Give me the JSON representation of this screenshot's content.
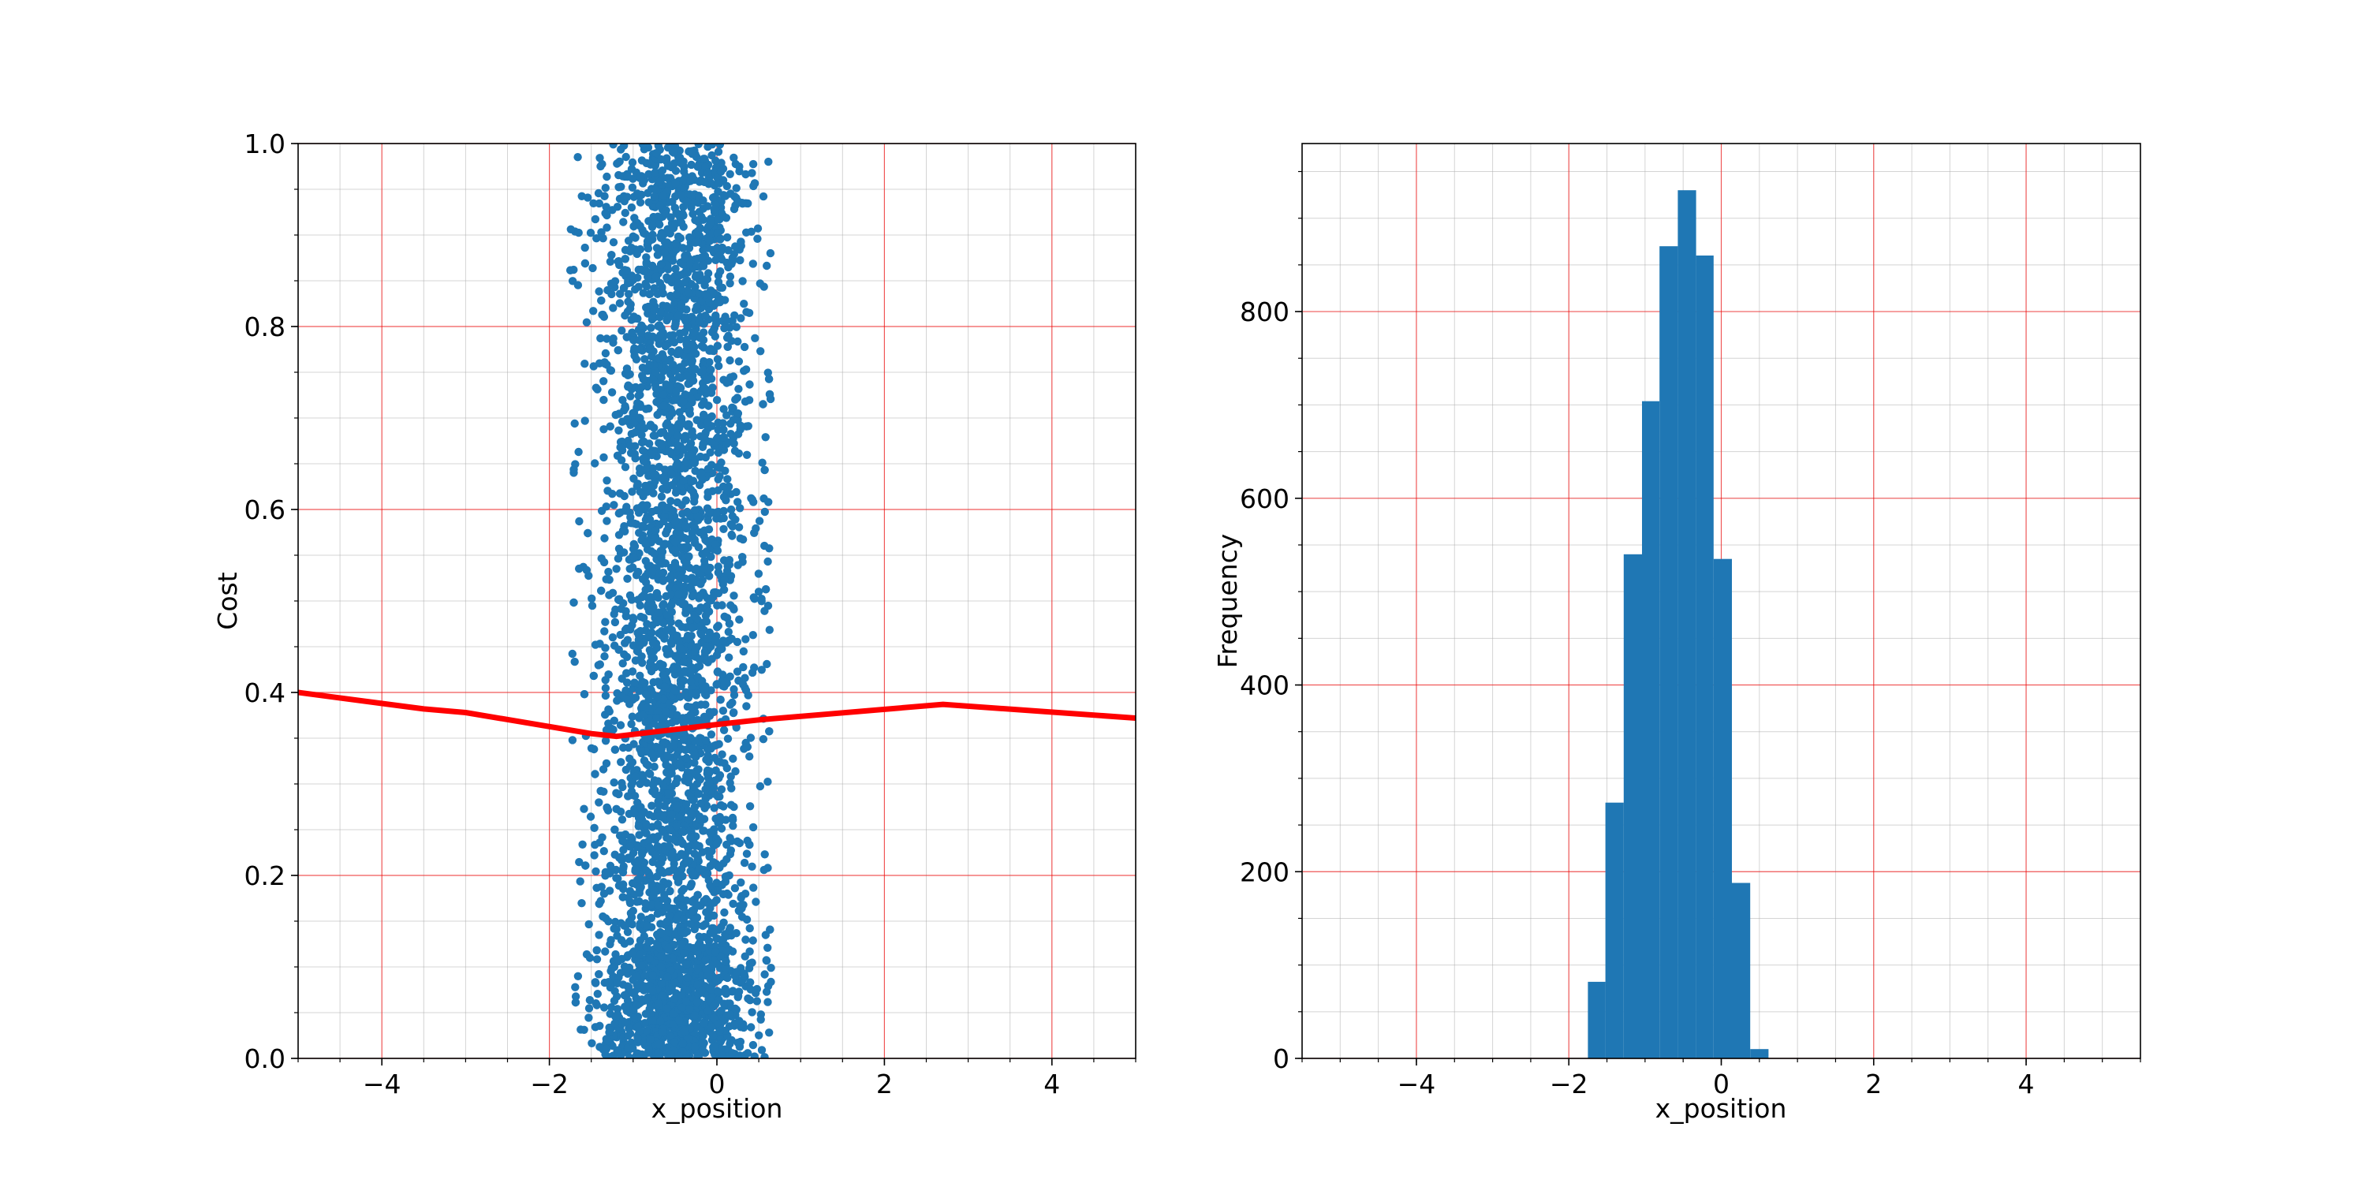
{
  "colors": {
    "scatter": "#1f77b4",
    "bars": "#1f77b4",
    "cost_line": "#ff0000",
    "major_grid": "#ff0000",
    "minor_grid": "#b0b0b0"
  },
  "chart_data": [
    {
      "type": "scatter",
      "xlabel": "x_position",
      "ylabel": "Cost",
      "xlim": [
        -5,
        5
      ],
      "ylim": [
        0,
        1
      ],
      "x_ticks": [
        -4,
        -2,
        0,
        2,
        4
      ],
      "y_ticks": [
        0.0,
        0.2,
        0.4,
        0.6,
        0.8,
        1.0
      ],
      "x_tick_labels": [
        "−4",
        "−2",
        "0",
        "2",
        "4"
      ],
      "y_tick_labels": [
        "0.0",
        "0.2",
        "0.4",
        "0.6",
        "0.8",
        "1.0"
      ],
      "grid": true,
      "scatter_description": {
        "count": 4500,
        "x_distribution": "normal",
        "x_mean": -0.5,
        "x_std": 0.45,
        "x_range": [
          -1.75,
          0.65
        ],
        "y_distribution": "uniform",
        "y_range": [
          0,
          1
        ]
      },
      "cost_line": {
        "x": [
          -5,
          -3.5,
          -3,
          -1.5,
          -1.2,
          0,
          0.5,
          2.7,
          5
        ],
        "y": [
          0.4,
          0.382,
          0.378,
          0.355,
          0.352,
          0.365,
          0.37,
          0.387,
          0.372
        ]
      }
    },
    {
      "type": "bar",
      "subtype": "histogram",
      "xlabel": "x_position",
      "ylabel": "Frequency",
      "xlim": [
        -5.5,
        5.5
      ],
      "ylim": [
        0,
        980
      ],
      "x_ticks": [
        -4,
        -2,
        0,
        2,
        4
      ],
      "y_ticks": [
        0,
        200,
        400,
        600,
        800
      ],
      "x_tick_labels": [
        "−4",
        "−2",
        "0",
        "2",
        "4"
      ],
      "y_tick_labels": [
        "0",
        "200",
        "400",
        "600",
        "800"
      ],
      "grid": true,
      "bin_edges": [
        -1.75,
        -1.52,
        -1.28,
        -1.04,
        -0.81,
        -0.57,
        -0.33,
        -0.1,
        0.14,
        0.38,
        0.62
      ],
      "values": [
        82,
        274,
        540,
        704,
        870,
        930,
        860,
        535,
        188,
        10
      ]
    }
  ]
}
